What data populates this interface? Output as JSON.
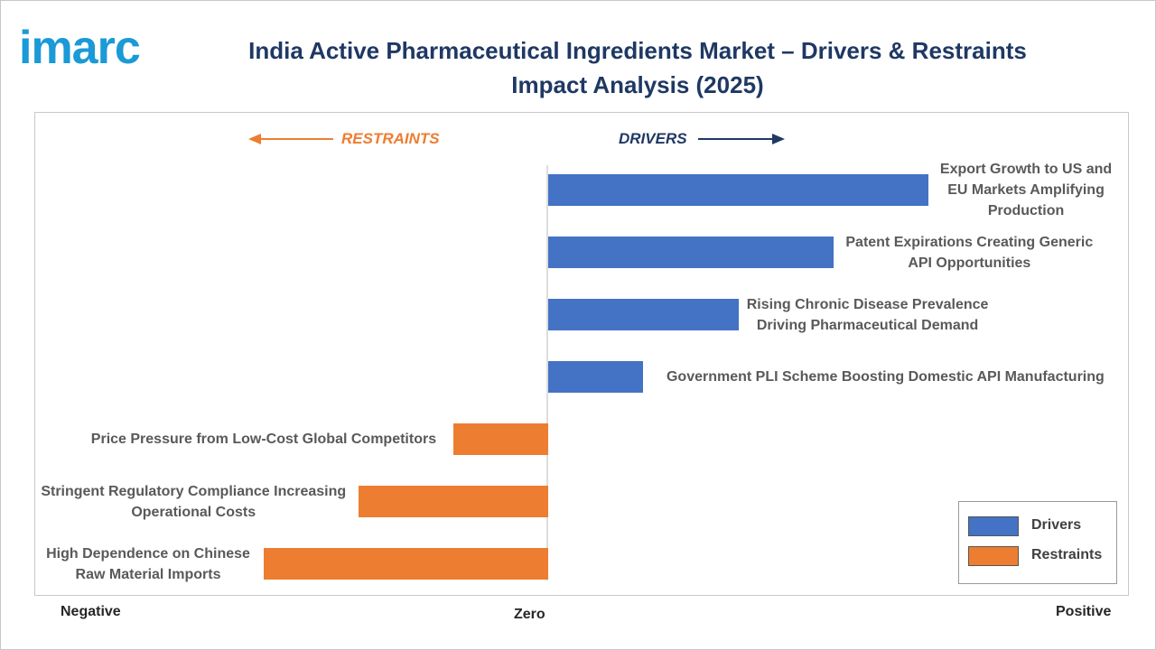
{
  "logo": "imarc",
  "chart_data": {
    "type": "diverging-bar",
    "title": "India Active Pharmaceutical Ingredients Market – Drivers & Restraints Impact Analysis (2025)",
    "left_header": "RESTRAINTS",
    "right_header": "DRIVERS",
    "axis_end_labels": {
      "negative": "Negative",
      "zero": "Zero",
      "positive": "Positive"
    },
    "categories": [
      "Export Growth to US and EU Markets Amplifying Production",
      "Patent Expirations Creating Generic API Opportunities",
      "Rising Chronic Disease Prevalence Driving Pharmaceutical Demand",
      "Government PLI Scheme Boosting Domestic API Manufacturing",
      "Price Pressure from Low-Cost Global Competitors",
      "Stringent Regulatory Compliance Increasing Operational Costs",
      "High Dependence on Chinese Raw Material Imports"
    ],
    "series": [
      {
        "name": "Drivers",
        "color": "#4472c4",
        "values": [
          4,
          3,
          2,
          1,
          null,
          null,
          null
        ]
      },
      {
        "name": "Restraints",
        "color": "#ed7d31",
        "values": [
          null,
          null,
          null,
          null,
          -1,
          -2,
          -3
        ]
      }
    ],
    "xlim": [
      -5.4,
      6.1
    ],
    "legend": "bottom-right"
  }
}
